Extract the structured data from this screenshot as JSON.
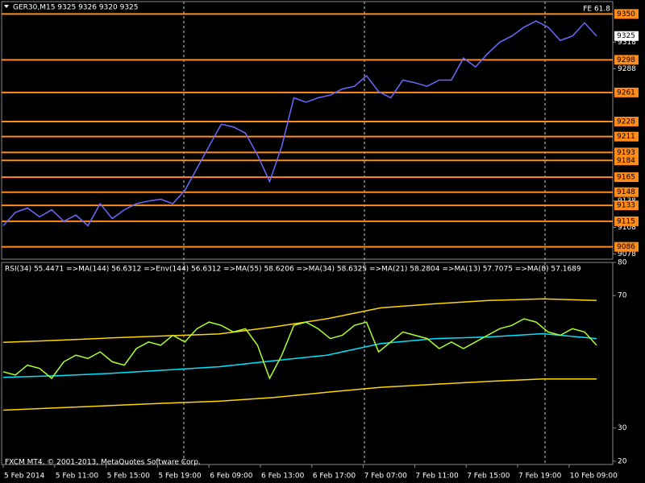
{
  "chart_data": [
    {
      "type": "line",
      "title": "GER30,M15  9325 9326 9320 9325",
      "annotation": "FE 61.8",
      "color": "#6a6aff",
      "values": [
        9110,
        9125,
        9130,
        9120,
        9128,
        9115,
        9122,
        9110,
        9135,
        9118,
        9128,
        9135,
        9138,
        9140,
        9135,
        9150,
        9175,
        9200,
        9225,
        9222,
        9215,
        9190,
        9160,
        9200,
        9255,
        9250,
        9255,
        9258,
        9265,
        9268,
        9280,
        9262,
        9255,
        9275,
        9272,
        9268,
        9275,
        9275,
        9300,
        9290,
        9305,
        9318,
        9325,
        9335,
        9342,
        9335,
        9320,
        9325,
        9340,
        9325
      ],
      "ylim": [
        9072,
        9364
      ],
      "yticks": [
        9318,
        9288,
        9138,
        9108,
        9078
      ],
      "levels": [
        9350,
        9298,
        9261,
        9228,
        9211,
        9193,
        9184,
        9165,
        9148,
        9133,
        9115,
        9086
      ],
      "level_color": "#ff8c1a",
      "last_price": 9325,
      "x_labels": [
        "5 Feb 2014",
        "5 Feb 11:00",
        "5 Feb 15:00",
        "5 Feb 19:00",
        "6 Feb 09:00",
        "6 Feb 13:00",
        "6 Feb 17:00",
        "7 Feb 07:00",
        "7 Feb 11:00",
        "7 Feb 15:00",
        "7 Feb 19:00",
        "10 Feb 09:00"
      ]
    },
    {
      "type": "line",
      "title": "RSI(34) 55.4471  =>MA(144) 56.6312  =>Env(144) 56.6312  =>MA(55) 58.6206  =>MA(34) 58.6325  =>MA(21) 58.2804  =>MA(13) 57.7075  =>MA(8) 57.1689",
      "ylim": [
        19,
        80
      ],
      "yticks": [
        80,
        70,
        30,
        20
      ],
      "series": [
        {
          "color": "#ffd700",
          "values": [
            55.9,
            56.5,
            57.2,
            57.8,
            58.4,
            60.5,
            63,
            66.3,
            67.5,
            68.5,
            69,
            68.5
          ]
        },
        {
          "color": "#ffd700",
          "values": [
            35.4,
            36.1,
            36.8,
            37.5,
            38.1,
            39.2,
            40.8,
            42.3,
            43.2,
            44.1,
            44.8,
            44.8
          ]
        },
        {
          "color": "#00e5ff",
          "values": [
            45.3,
            45.8,
            46.5,
            47.5,
            48.5,
            50.3,
            52,
            55.5,
            57,
            57.5,
            58.5,
            57
          ]
        },
        {
          "color": "#adff2f",
          "values": [
            47,
            46,
            49,
            48,
            45,
            50,
            52,
            51,
            53,
            50,
            49,
            54,
            56,
            55,
            58,
            56,
            60,
            62,
            61,
            59,
            60,
            55,
            45,
            52,
            61,
            62,
            60,
            57,
            58,
            61,
            62,
            53,
            56,
            59,
            58,
            57,
            54,
            56,
            54,
            56,
            58,
            60,
            61,
            63,
            62,
            59,
            58,
            60,
            59,
            55
          ]
        }
      ]
    }
  ],
  "footer": "FXCM MT4, © 2001-2013, MetaQuotes Software Corp."
}
